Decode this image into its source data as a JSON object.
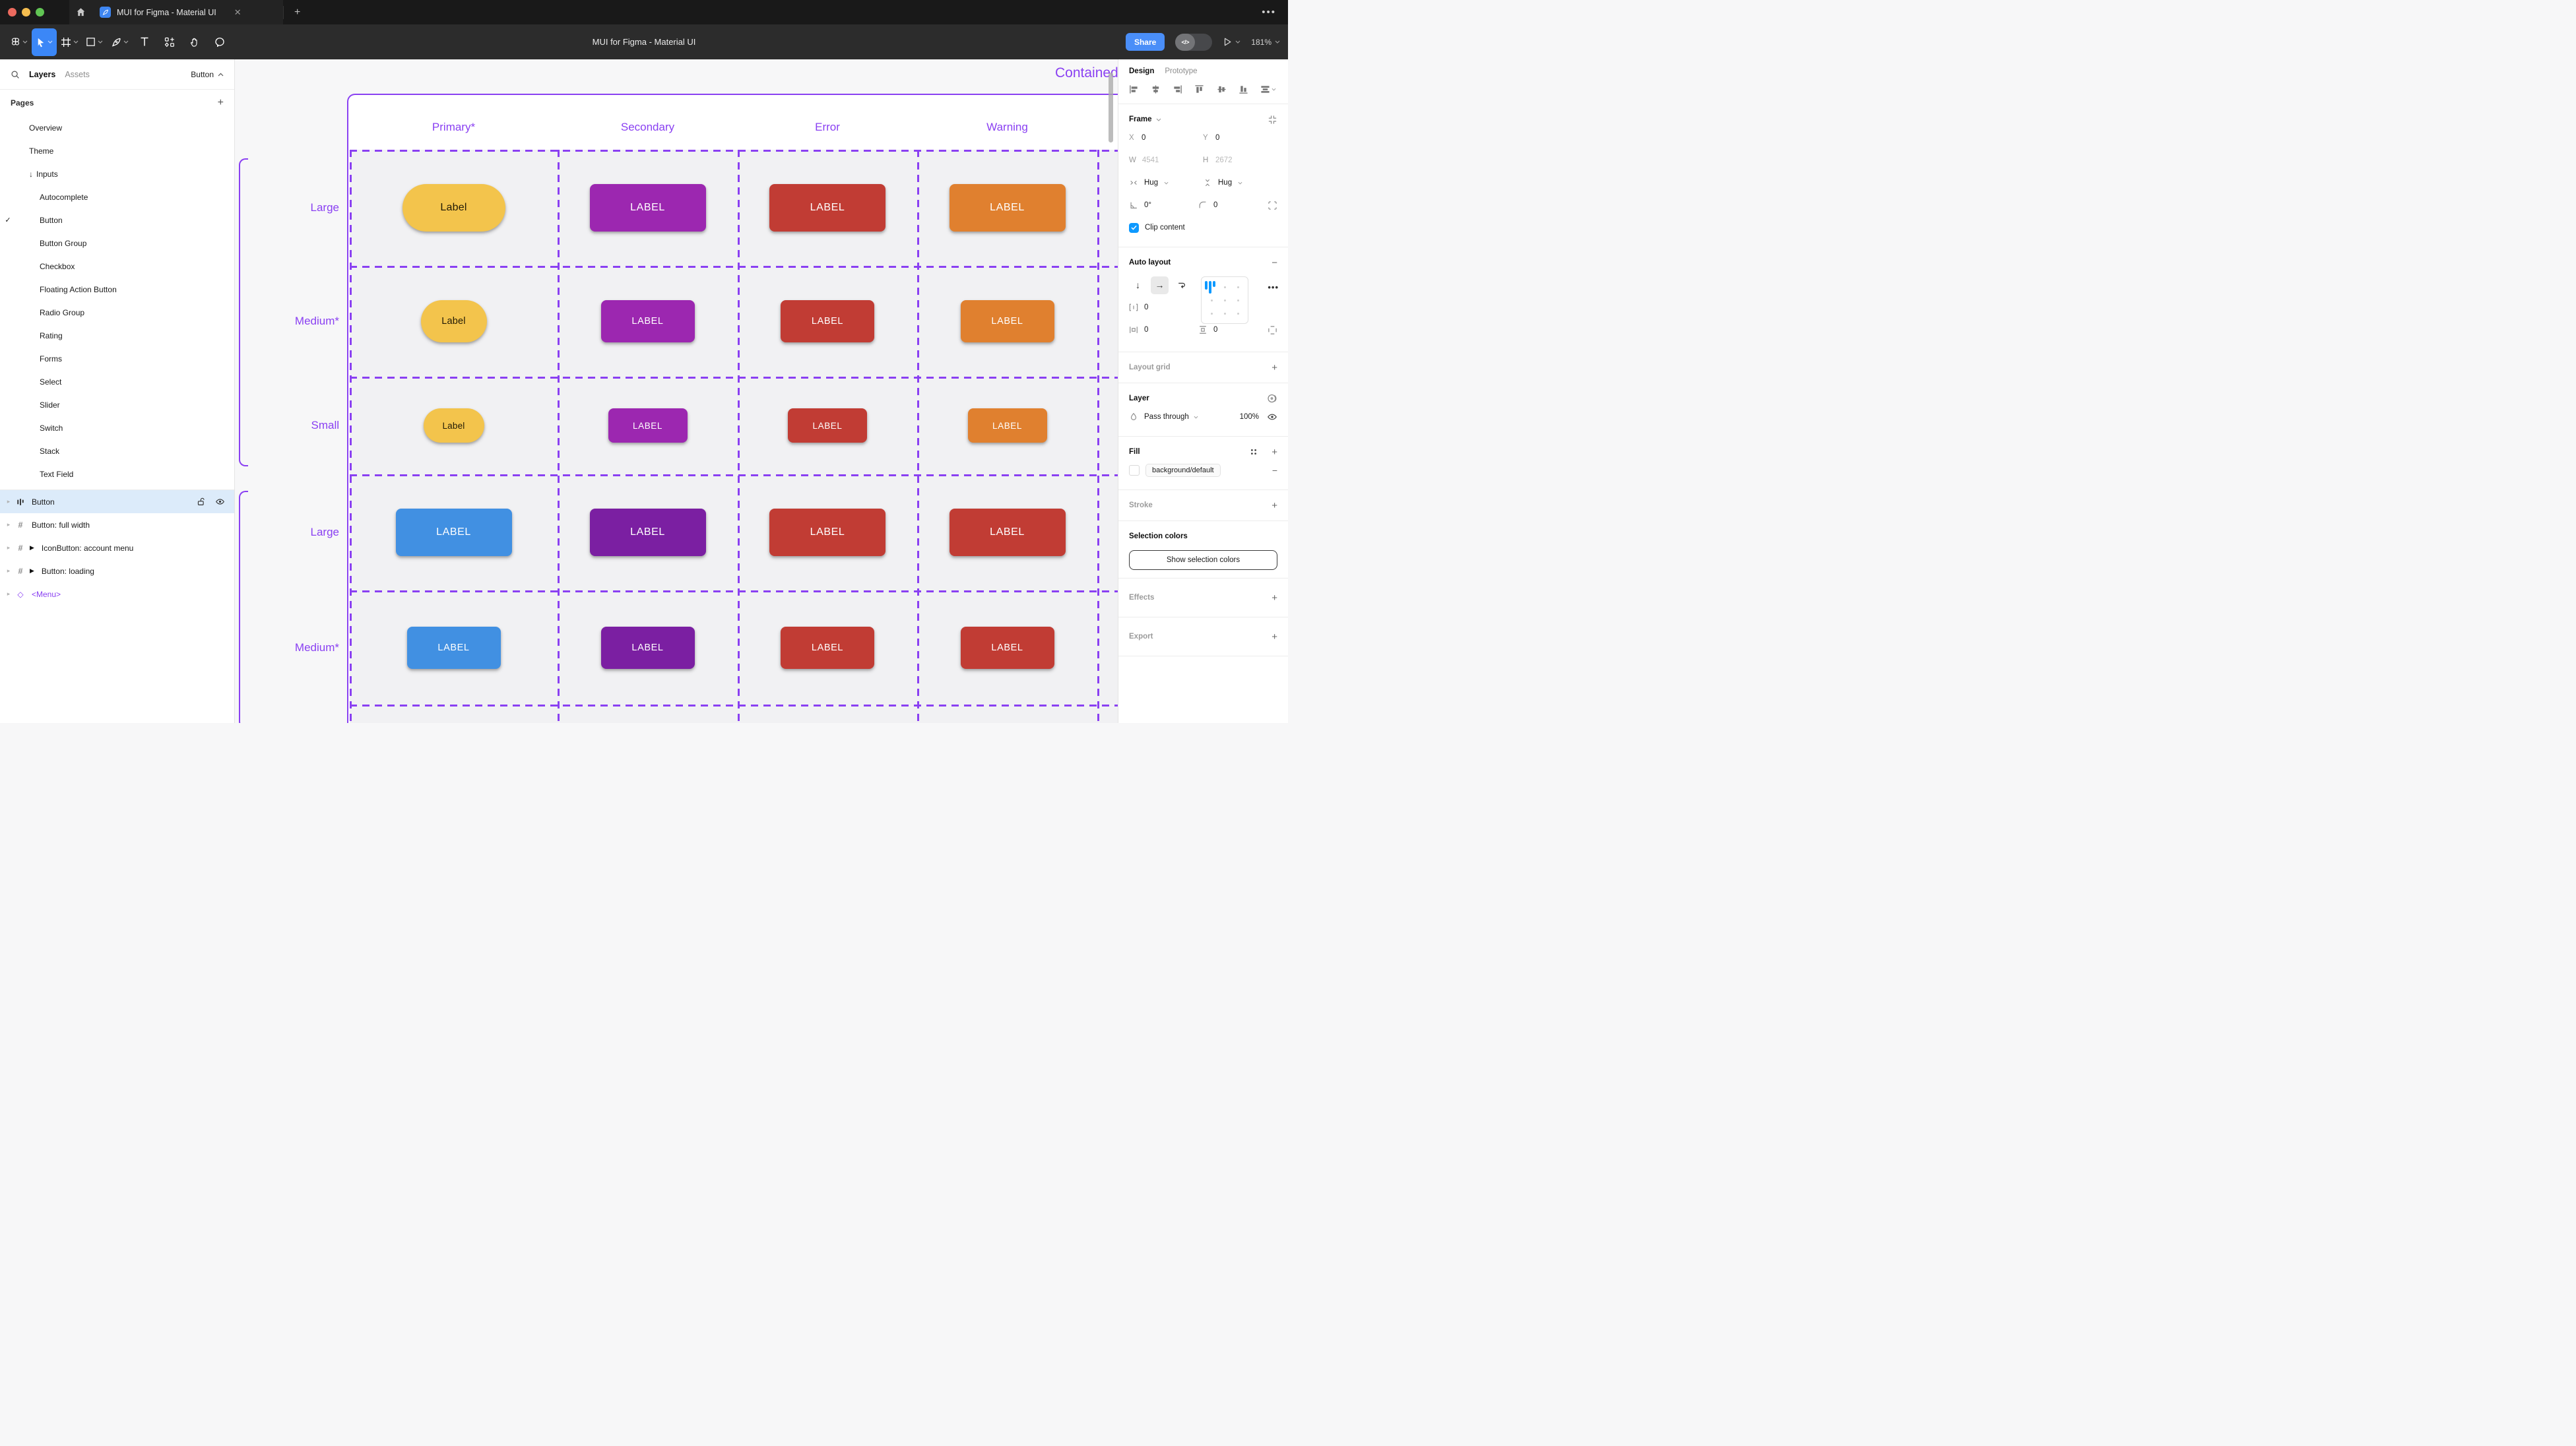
{
  "titlebar": {
    "tab_title": "MUI for Figma - Material UI"
  },
  "toolbar": {
    "document_title": "MUI for Figma - Material UI",
    "share_label": "Share",
    "zoom_level": "181%"
  },
  "left_panel": {
    "tabs": {
      "layers": "Layers",
      "assets": "Assets"
    },
    "selection_label": "Button",
    "pages_header": "Pages",
    "pages": [
      {
        "label": "Overview",
        "level": 1
      },
      {
        "label": "Theme",
        "level": 1
      },
      {
        "label": "Inputs",
        "level": 1,
        "arrow": true
      },
      {
        "label": "Autocomplete",
        "level": 2
      },
      {
        "label": "Button",
        "level": 2,
        "checked": true
      },
      {
        "label": "Button Group",
        "level": 2
      },
      {
        "label": "Checkbox",
        "level": 2
      },
      {
        "label": "Floating Action Button",
        "level": 2
      },
      {
        "label": "Radio Group",
        "level": 2
      },
      {
        "label": "Rating",
        "level": 2
      },
      {
        "label": "Forms",
        "level": 2
      },
      {
        "label": "Select",
        "level": 2
      },
      {
        "label": "Slider",
        "level": 2
      },
      {
        "label": "Switch",
        "level": 2
      },
      {
        "label": "Stack",
        "level": 2
      },
      {
        "label": "Text Field",
        "level": 2
      }
    ],
    "layers": [
      {
        "name": "Button",
        "icon": "autolayout",
        "selected": true
      },
      {
        "name": "Button: full width",
        "icon": "frame"
      },
      {
        "name": "IconButton: account menu",
        "icon": "frame",
        "component_arrow": true
      },
      {
        "name": "Button: loading",
        "icon": "frame",
        "component_arrow": true
      },
      {
        "name": "<Menu>",
        "icon": "diamond",
        "purple": true
      }
    ]
  },
  "canvas": {
    "frame_label": "Contained",
    "column_headers": [
      "Primary*",
      "Secondary",
      "Error",
      "Warning"
    ],
    "rows": [
      {
        "label": "Large",
        "size": "large",
        "buttons": [
          {
            "text": "Label",
            "color": "yellow",
            "shape": "pill"
          },
          {
            "text": "LABEL",
            "color": "purple"
          },
          {
            "text": "LABEL",
            "color": "red"
          },
          {
            "text": "LABEL",
            "color": "orange"
          }
        ]
      },
      {
        "label": "Medium*",
        "size": "medium",
        "buttons": [
          {
            "text": "Label",
            "color": "yellow",
            "shape": "pill"
          },
          {
            "text": "LABEL",
            "color": "purple"
          },
          {
            "text": "LABEL",
            "color": "red"
          },
          {
            "text": "LABEL",
            "color": "orange"
          }
        ]
      },
      {
        "label": "Small",
        "size": "small",
        "buttons": [
          {
            "text": "Label",
            "color": "yellow",
            "shape": "pill"
          },
          {
            "text": "LABEL",
            "color": "purple"
          },
          {
            "text": "LABEL",
            "color": "red"
          },
          {
            "text": "LABEL",
            "color": "orange"
          }
        ]
      },
      {
        "label": "Large",
        "size": "large",
        "buttons": [
          {
            "text": "LABEL",
            "color": "blue"
          },
          {
            "text": "LABEL",
            "color": "dark_purple"
          },
          {
            "text": "LABEL",
            "color": "red"
          },
          {
            "text": "LABEL",
            "color": "red"
          }
        ]
      },
      {
        "label": "Medium*",
        "size": "medium",
        "buttons": [
          {
            "text": "LABEL",
            "color": "blue"
          },
          {
            "text": "LABEL",
            "color": "dark_purple"
          },
          {
            "text": "LABEL",
            "color": "red"
          },
          {
            "text": "LABEL",
            "color": "red"
          }
        ]
      }
    ],
    "colors": {
      "accent": "#8A40F2",
      "yellow": "#F3C44C",
      "yellow_text": "#211A05",
      "purple": "#9C27B0",
      "red": "#C13C34",
      "orange": "#E0802F",
      "blue": "#4190E2",
      "dark_purple": "#7B1FA2",
      "label_text": "#FFFFFF"
    }
  },
  "right_panel": {
    "tabs": {
      "design": "Design",
      "prototype": "Prototype"
    },
    "frame": {
      "header": "Frame",
      "x_label": "X",
      "x_value": "0",
      "y_label": "Y",
      "y_value": "0",
      "w_label": "W",
      "w_value": "4541",
      "h_label": "H",
      "h_value": "2672",
      "hug_h": "Hug",
      "hug_v": "Hug",
      "rotation_value": "0°",
      "radius_value": "0",
      "clip_label": "Clip content"
    },
    "auto_layout": {
      "header": "Auto layout",
      "gap_value": "0",
      "pad_h_value": "0",
      "pad_v_value": "0"
    },
    "layout_grid": {
      "header": "Layout grid"
    },
    "layer": {
      "header": "Layer",
      "blend_mode": "Pass through",
      "opacity": "100%"
    },
    "fill": {
      "header": "Fill",
      "token": "background/default"
    },
    "stroke": {
      "header": "Stroke"
    },
    "selection_colors": {
      "header": "Selection colors",
      "button_label": "Show selection colors"
    },
    "effects": {
      "header": "Effects"
    },
    "export": {
      "header": "Export"
    }
  }
}
